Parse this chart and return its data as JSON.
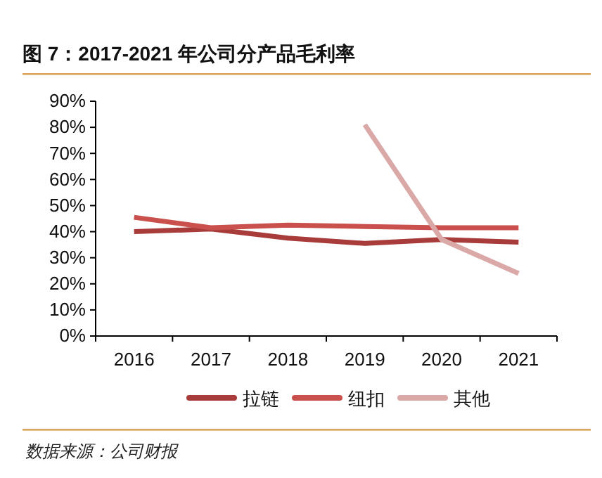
{
  "chart_data": {
    "type": "line",
    "title": "图 7：2017-2021 年公司分产品毛利率",
    "categories": [
      "2016",
      "2017",
      "2018",
      "2019",
      "2020",
      "2021"
    ],
    "series": [
      {
        "name": "拉链",
        "color": "#a83c3a",
        "values": [
          40,
          41,
          37.5,
          35.5,
          37,
          36
        ]
      },
      {
        "name": "纽扣",
        "color": "#c9504c",
        "values": [
          45.5,
          41.5,
          42.5,
          42,
          41.5,
          41.5
        ]
      },
      {
        "name": "其他",
        "color": "#dba8a8",
        "values": [
          null,
          null,
          null,
          81,
          37,
          24
        ]
      }
    ],
    "ylim": [
      0,
      90
    ],
    "yticks": [
      {
        "value": 0,
        "label": "0%"
      },
      {
        "value": 10,
        "label": "10%"
      },
      {
        "value": 20,
        "label": "20%"
      },
      {
        "value": 30,
        "label": "30%"
      },
      {
        "value": 40,
        "label": "40%"
      },
      {
        "value": 50,
        "label": "50%"
      },
      {
        "value": 60,
        "label": "60%"
      },
      {
        "value": 70,
        "label": "70%"
      },
      {
        "value": 80,
        "label": "80%"
      },
      {
        "value": 90,
        "label": "90%"
      }
    ],
    "grid": false,
    "legend": "bottom",
    "marker": "none",
    "line_style": "solid",
    "annotations": [
      "数据来源：公司财报"
    ]
  }
}
